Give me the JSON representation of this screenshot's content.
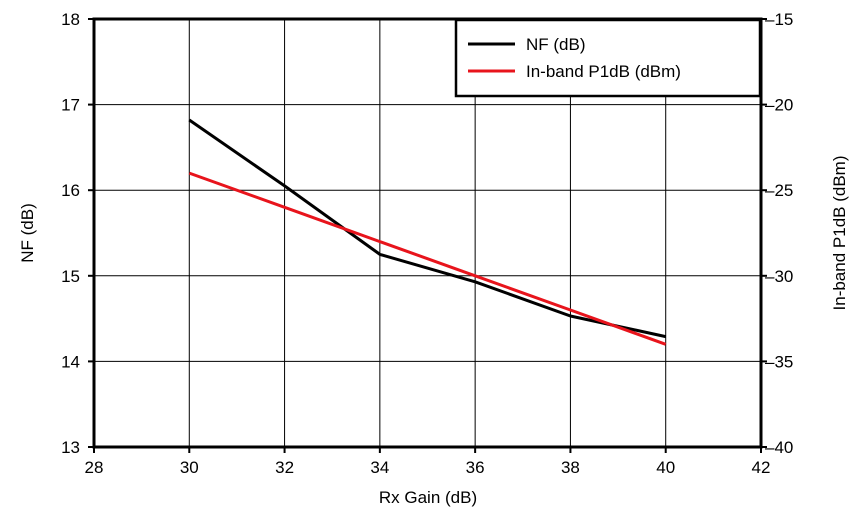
{
  "chart_data": {
    "type": "line",
    "xlabel": "Rx Gain (dB)",
    "ylabel": "NF (dB)",
    "y2label": "In-band P1dB (dBm)",
    "xlim": [
      28,
      42
    ],
    "ylim": [
      13,
      18
    ],
    "y2lim": [
      -40,
      -15
    ],
    "x_ticks": [
      "28",
      "30",
      "32",
      "34",
      "36",
      "38",
      "40",
      "42"
    ],
    "y_ticks": [
      "13",
      "14",
      "15",
      "16",
      "17",
      "18"
    ],
    "y2_ticks": [
      "-40",
      "-35",
      "-30",
      "-25",
      "-20",
      "-15"
    ],
    "grid": true,
    "legend_position": "top-right",
    "series": [
      {
        "name": "NF (dB)",
        "axis": "left",
        "color": "#000000",
        "x": [
          30,
          32,
          34,
          36,
          38,
          40
        ],
        "y": [
          16.82,
          16.05,
          15.25,
          14.93,
          14.53,
          14.29
        ]
      },
      {
        "name": "In-band P1dB (dBm)",
        "axis": "right",
        "color": "#e8141c",
        "x": [
          30,
          32,
          34,
          36,
          38,
          40
        ],
        "y": [
          -24,
          -26,
          -28,
          -30,
          -32,
          -34
        ]
      }
    ]
  }
}
